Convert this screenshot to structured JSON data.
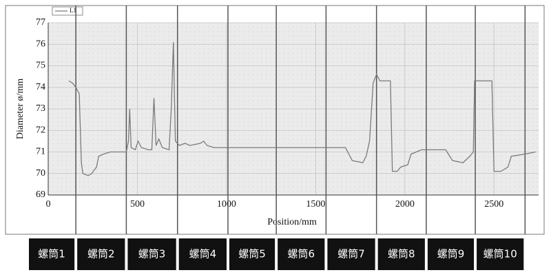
{
  "chart_data": {
    "type": "line",
    "legend": "L1",
    "xlabel": "Position/mm",
    "ylabel": "Diameter ø/mm",
    "xlim": [
      0,
      2750
    ],
    "ylim": [
      69,
      77
    ],
    "xticks": [
      0,
      500,
      1000,
      1500,
      2000,
      2500
    ],
    "yticks": [
      69,
      70,
      71,
      72,
      73,
      74,
      75,
      76,
      77
    ],
    "grid": true,
    "boundaries": [
      155,
      438,
      725,
      1008,
      1279,
      1558,
      1841,
      2120,
      2395,
      2674
    ],
    "segments": [
      "螺筒1",
      "螺筒2",
      "螺筒3",
      "螺筒4",
      "螺筒5",
      "螺筒6",
      "螺筒7",
      "螺筒8",
      "螺筒9",
      "螺筒10"
    ],
    "series": [
      {
        "name": "L1",
        "color": "#7a7a7a",
        "x": [
          116,
          136,
          155,
          174,
          186,
          194,
          225,
          244,
          271,
          283,
          310,
          349,
          438,
          450,
          457,
          465,
          488,
          504,
          523,
          562,
          581,
          593,
          605,
          620,
          640,
          678,
          690,
          702,
          713,
          736,
          767,
          795,
          853,
          872,
          891,
          930,
          1279,
          1550,
          1589,
          1667,
          1705,
          1764,
          1783,
          1802,
          1822,
          1841,
          1860,
          1919,
          1930,
          1957,
          1977,
          2016,
          2035,
          2093,
          2229,
          2267,
          2326,
          2364,
          2384,
          2391,
          2488,
          2500,
          2539,
          2578,
          2597,
          2674,
          2733
        ],
        "values": [
          74.3,
          74.2,
          74.0,
          73.7,
          70.5,
          70.0,
          69.9,
          70.0,
          70.3,
          70.8,
          70.9,
          71.0,
          71.0,
          71.5,
          73.0,
          71.2,
          71.1,
          71.5,
          71.2,
          71.1,
          71.1,
          73.5,
          71.3,
          71.6,
          71.2,
          71.1,
          73.0,
          76.1,
          71.5,
          71.3,
          71.4,
          71.3,
          71.4,
          71.5,
          71.3,
          71.2,
          71.2,
          71.2,
          71.2,
          71.2,
          70.6,
          70.5,
          70.8,
          71.5,
          74.2,
          74.6,
          74.3,
          74.3,
          70.1,
          70.1,
          70.3,
          70.4,
          70.9,
          71.1,
          71.1,
          70.6,
          70.5,
          70.8,
          71.0,
          74.3,
          74.3,
          70.1,
          70.1,
          70.3,
          70.8,
          70.9,
          71.0
        ]
      }
    ]
  }
}
